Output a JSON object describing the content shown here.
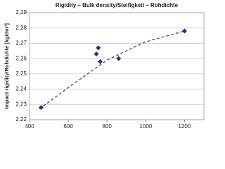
{
  "chart_data": {
    "type": "scatter",
    "title": "Rigidity – Bulk density/Steifigkeit – Rohdichte",
    "y_label": "Impact rigidity/Rohdichte [kg/dm³]",
    "x": [
      460,
      745,
      755,
      765,
      860,
      1200
    ],
    "values": [
      2.228,
      2.263,
      2.267,
      2.258,
      2.26,
      2.278
    ],
    "color": "#2b2f86",
    "trendline": {
      "x": [
        450,
        600,
        800,
        1000,
        1200
      ],
      "values": [
        2.227,
        2.241,
        2.259,
        2.271,
        2.278
      ],
      "color": "#2b3a8f",
      "dashed": true
    },
    "xlim": [
      400,
      1300
    ],
    "xticks": [
      400,
      600,
      800,
      1000,
      1200
    ],
    "ylim": [
      2.22,
      2.29
    ],
    "yticks": [
      {
        "value": 2.22,
        "label": "2,22"
      },
      {
        "value": 2.23,
        "label": "2,23"
      },
      {
        "value": 2.24,
        "label": "2,24"
      },
      {
        "value": 2.25,
        "label": "2,25"
      },
      {
        "value": 2.26,
        "label": "2,26"
      },
      {
        "value": 2.27,
        "label": "2,27"
      },
      {
        "value": 2.28,
        "label": "2,28"
      },
      {
        "value": 2.29,
        "label": "2,29"
      }
    ],
    "grid": true
  }
}
